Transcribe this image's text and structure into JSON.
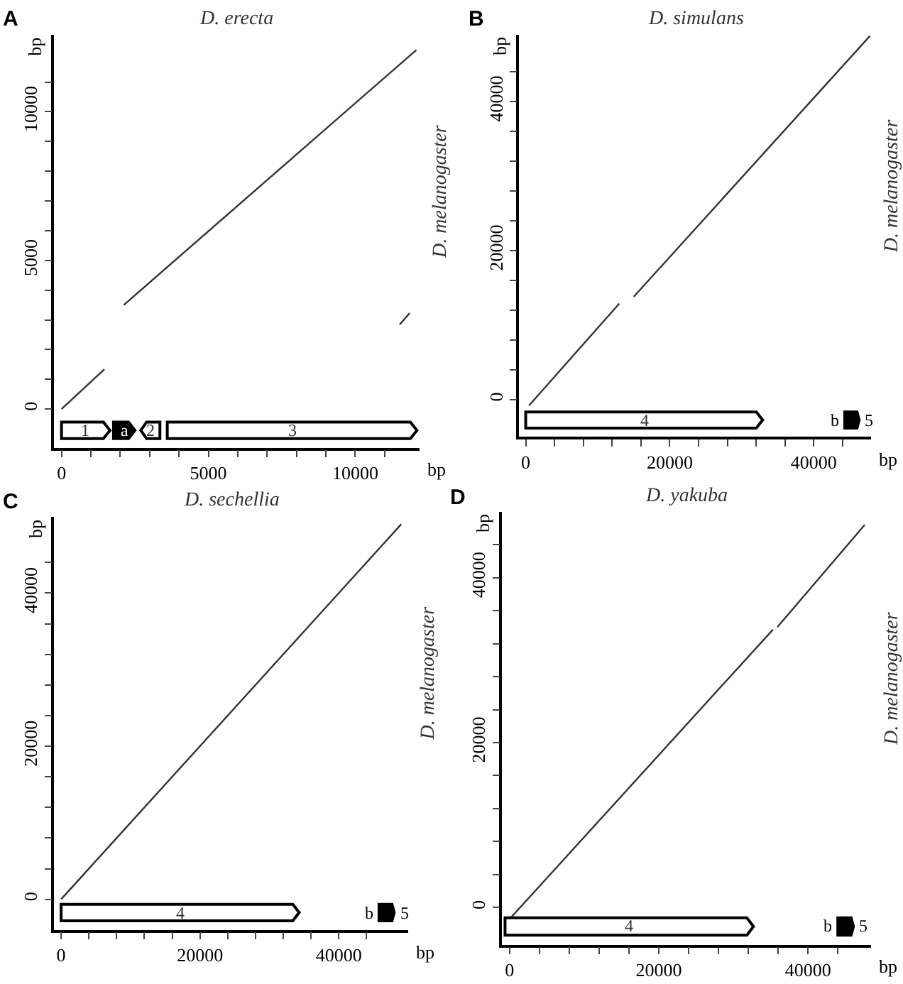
{
  "chart_data": [
    {
      "type": "line",
      "title": "D. erecta",
      "xlabel": "bp",
      "ylabel": "bp",
      "y2label": "D. melanogaster",
      "annotations": [
        "A"
      ],
      "marker": "none",
      "line_style": "solid",
      "xlim": [
        -250,
        12200
      ],
      "ylim": [
        -1300,
        12600
      ],
      "xticks": [
        0,
        {
          "value": 1000,
          "label": null
        },
        {
          "value": 2000,
          "label": null
        },
        {
          "value": 3000,
          "label": null
        },
        {
          "value": 4000,
          "label": null
        },
        5000,
        {
          "value": 6000,
          "label": null
        },
        {
          "value": 7000,
          "label": null
        },
        {
          "value": 8000,
          "label": null
        },
        {
          "value": 9000,
          "label": null
        },
        10000,
        {
          "value": 11000,
          "label": null
        }
      ],
      "yticks": [
        0,
        {
          "value": 1000,
          "label": null
        },
        {
          "value": 2000,
          "label": null
        },
        {
          "value": 3000,
          "label": null
        },
        {
          "value": 4000,
          "label": null
        },
        5000,
        {
          "value": 6000,
          "label": null
        },
        {
          "value": 7000,
          "label": null
        },
        {
          "value": 8000,
          "label": null
        },
        {
          "value": 9000,
          "label": null
        },
        10000,
        {
          "value": 11000,
          "label": null
        }
      ],
      "series": [
        {
          "color": "#333333",
          "x": [
            0,
            1460
          ],
          "values": [
            0,
            1340
          ]
        },
        {
          "color": "#333333",
          "x": [
            2120,
            12080
          ],
          "values": [
            3500,
            12080
          ]
        },
        {
          "color": "#333333",
          "x": [
            11510,
            11850
          ],
          "values": [
            2840,
            3230
          ]
        }
      ],
      "bands": [
        {
          "axis": "x",
          "from": 0,
          "to": 1650,
          "label": "1",
          "color": "#ffffff"
        },
        {
          "axis": "x",
          "from": 1770,
          "to": 2500,
          "label": "a",
          "color": "#000000"
        },
        {
          "axis": "x",
          "from": 3350,
          "to": 2700,
          "label": "2",
          "color": "#ffffff"
        },
        {
          "axis": "x",
          "from": 3600,
          "to": 12100,
          "label": "3",
          "color": "#ffffff"
        }
      ]
    },
    {
      "type": "line",
      "title": "D. simulans",
      "xlabel": "bp",
      "ylabel": "bp",
      "y2label": "D. melanogaster",
      "annotations": [
        "B"
      ],
      "marker": "none",
      "line_style": "solid",
      "xlim": [
        -900,
        48000
      ],
      "ylim": [
        -5000,
        49000
      ],
      "xticks": [
        0,
        {
          "value": 4000,
          "label": null
        },
        {
          "value": 8000,
          "label": null
        },
        {
          "value": 12000,
          "label": null
        },
        {
          "value": 16000,
          "label": null
        },
        20000,
        {
          "value": 24000,
          "label": null
        },
        {
          "value": 28000,
          "label": null
        },
        {
          "value": 32000,
          "label": null
        },
        {
          "value": 36000,
          "label": null
        },
        40000,
        {
          "value": 44000,
          "label": null
        }
      ],
      "yticks": [
        0,
        {
          "value": 4000,
          "label": null
        },
        {
          "value": 8000,
          "label": null
        },
        {
          "value": 12000,
          "label": null
        },
        {
          "value": 16000,
          "label": null
        },
        20000,
        {
          "value": 24000,
          "label": null
        },
        {
          "value": 28000,
          "label": null
        },
        {
          "value": 32000,
          "label": null
        },
        {
          "value": 36000,
          "label": null
        },
        40000,
        {
          "value": 44000,
          "label": null
        }
      ],
      "series": [
        {
          "color": "#333333",
          "x": [
            450,
            13000
          ],
          "values": [
            -800,
            12900
          ]
        },
        {
          "color": "#333333",
          "x": [
            15000,
            47800
          ],
          "values": [
            13800,
            48800
          ]
        }
      ],
      "bands": [
        {
          "axis": "x",
          "from": 0,
          "to": 32900,
          "label": "4",
          "color": "#ffffff"
        },
        {
          "axis": "x",
          "from": 44300,
          "to": 45300,
          "label": "b",
          "color": "#000000"
        },
        {
          "axis": "x",
          "from": 45300,
          "to": 46300,
          "label": "5",
          "color": "#000000"
        }
      ]
    },
    {
      "type": "line",
      "title": "D. sechellia",
      "xlabel": "bp",
      "ylabel": "bp",
      "y2label": "D. melanogaster",
      "annotations": [
        "C"
      ],
      "marker": "none",
      "line_style": "solid",
      "xlim": [
        -1000,
        50000
      ],
      "ylim": [
        -4000,
        50000
      ],
      "xticks": [
        0,
        {
          "value": 4000,
          "label": null
        },
        {
          "value": 8000,
          "label": null
        },
        {
          "value": 12000,
          "label": null
        },
        {
          "value": 16000,
          "label": null
        },
        20000,
        {
          "value": 24000,
          "label": null
        },
        {
          "value": 28000,
          "label": null
        },
        {
          "value": 32000,
          "label": null
        },
        {
          "value": 36000,
          "label": null
        },
        40000,
        {
          "value": 44000,
          "label": null
        }
      ],
      "yticks": [
        0,
        {
          "value": 4000,
          "label": null
        },
        {
          "value": 8000,
          "label": null
        },
        {
          "value": 12000,
          "label": null
        },
        {
          "value": 16000,
          "label": null
        },
        20000,
        {
          "value": 24000,
          "label": null
        },
        {
          "value": 28000,
          "label": null
        },
        {
          "value": 32000,
          "label": null
        },
        {
          "value": 36000,
          "label": null
        },
        40000,
        {
          "value": 44000,
          "label": null
        }
      ],
      "series": [
        {
          "color": "#333333",
          "x": [
            0,
            49000
          ],
          "values": [
            0,
            49000
          ]
        }
      ],
      "bands": [
        {
          "axis": "x",
          "from": 0,
          "to": 34300,
          "label": "4",
          "color": "#ffffff"
        },
        {
          "axis": "x",
          "from": 45800,
          "to": 46900,
          "label": "b",
          "color": "#000000"
        },
        {
          "axis": "x",
          "from": 46900,
          "to": 48000,
          "label": "5",
          "color": "#000000"
        }
      ]
    },
    {
      "type": "line",
      "title": "D. yakuba",
      "xlabel": "bp",
      "ylabel": "bp",
      "y2label": "D. melanogaster",
      "annotations": [
        "D"
      ],
      "marker": "none",
      "line_style": "solid",
      "xlim": [
        -1000,
        48500
      ],
      "ylim": [
        -4500,
        48000
      ],
      "xticks": [
        0,
        {
          "value": 4000,
          "label": null
        },
        {
          "value": 8000,
          "label": null
        },
        {
          "value": 12000,
          "label": null
        },
        {
          "value": 16000,
          "label": null
        },
        20000,
        {
          "value": 24000,
          "label": null
        },
        {
          "value": 28000,
          "label": null
        },
        {
          "value": 32000,
          "label": null
        },
        {
          "value": 36000,
          "label": null
        },
        40000,
        {
          "value": 44000,
          "label": null
        }
      ],
      "yticks": [
        0,
        {
          "value": 4000,
          "label": null
        },
        {
          "value": 8000,
          "label": null
        },
        {
          "value": 12000,
          "label": null
        },
        {
          "value": 16000,
          "label": null
        },
        20000,
        {
          "value": 24000,
          "label": null
        },
        {
          "value": 28000,
          "label": null
        },
        {
          "value": 32000,
          "label": null
        },
        {
          "value": 36000,
          "label": null
        },
        40000,
        {
          "value": 44000,
          "label": null
        }
      ],
      "series": [
        {
          "color": "#333333",
          "x": [
            -600,
            35300
          ],
          "values": [
            -2000,
            33700
          ]
        },
        {
          "color": "#333333",
          "x": [
            35900,
            47600
          ],
          "values": [
            34000,
            46400
          ]
        }
      ],
      "bands": [
        {
          "axis": "x",
          "from": -600,
          "to": 32700,
          "label": "4",
          "color": "#ffffff"
        },
        {
          "axis": "x",
          "from": 44000,
          "to": 45050,
          "label": "b",
          "color": "#000000"
        },
        {
          "axis": "x",
          "from": 45050,
          "to": 46100,
          "label": "5",
          "color": "#000000"
        }
      ]
    }
  ]
}
